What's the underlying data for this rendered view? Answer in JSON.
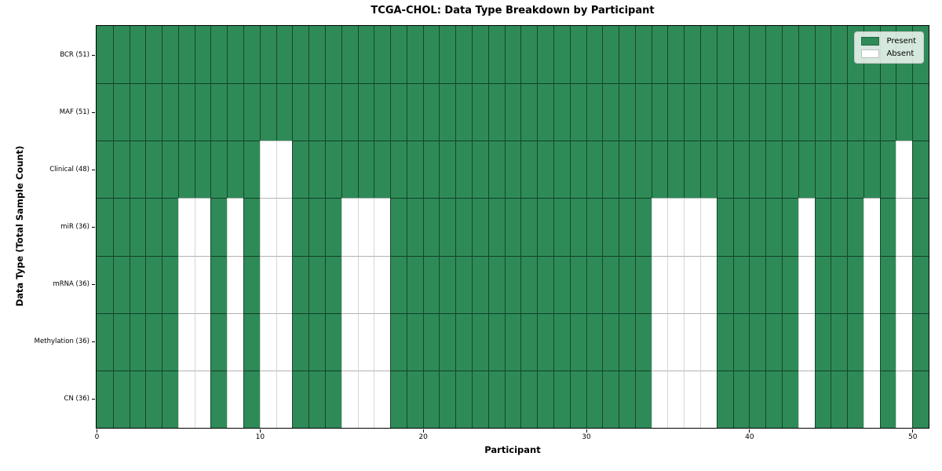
{
  "chart_data": {
    "type": "heatmap",
    "title": "TCGA-CHOL: Data Type Breakdown by Participant",
    "xlabel": "Participant",
    "ylabel": "Data Type (Total Sample Count)",
    "x_ticks": [
      0,
      10,
      20,
      30,
      40,
      50
    ],
    "x_range": [
      0,
      51
    ],
    "n_participants": 51,
    "grid": true,
    "colors": {
      "present": "#2e8b57",
      "absent": "#ffffff",
      "grid_on_present": "rgba(0,0,0,0.5)",
      "grid_on_absent": "rgba(0,0,0,0.16)",
      "row_line_on_present": "rgba(0,0,0,0.55)",
      "row_line_on_absent": "rgba(0,0,0,0.3)",
      "spine": "#000000"
    },
    "legend": {
      "position": "top-right",
      "entries": [
        {
          "label": "Present",
          "color": "#2e8b57"
        },
        {
          "label": "Absent",
          "color": "#ffffff"
        }
      ]
    },
    "rows": [
      {
        "label": "BCR (51)",
        "data_type": "BCR",
        "total_samples": 51,
        "absent_participants": []
      },
      {
        "label": "MAF (51)",
        "data_type": "MAF",
        "total_samples": 51,
        "absent_participants": []
      },
      {
        "label": "Clinical (48)",
        "data_type": "Clinical",
        "total_samples": 48,
        "absent_participants": [
          10,
          11,
          49
        ]
      },
      {
        "label": "miR (36)",
        "data_type": "miR",
        "total_samples": 36,
        "absent_participants": [
          5,
          6,
          8,
          10,
          11,
          15,
          16,
          17,
          34,
          35,
          36,
          37,
          43,
          47,
          49
        ]
      },
      {
        "label": "mRNA (36)",
        "data_type": "mRNA",
        "total_samples": 36,
        "absent_participants": [
          5,
          6,
          8,
          10,
          11,
          15,
          16,
          17,
          34,
          35,
          36,
          37,
          43,
          47,
          49
        ]
      },
      {
        "label": "Methylation (36)",
        "data_type": "Methylation",
        "total_samples": 36,
        "absent_participants": [
          5,
          6,
          8,
          10,
          11,
          15,
          16,
          17,
          34,
          35,
          36,
          37,
          43,
          47,
          49
        ]
      },
      {
        "label": "CN (36)",
        "data_type": "CN",
        "total_samples": 36,
        "absent_participants": [
          5,
          6,
          8,
          10,
          11,
          15,
          16,
          17,
          34,
          35,
          36,
          37,
          43,
          47,
          49
        ]
      }
    ]
  }
}
